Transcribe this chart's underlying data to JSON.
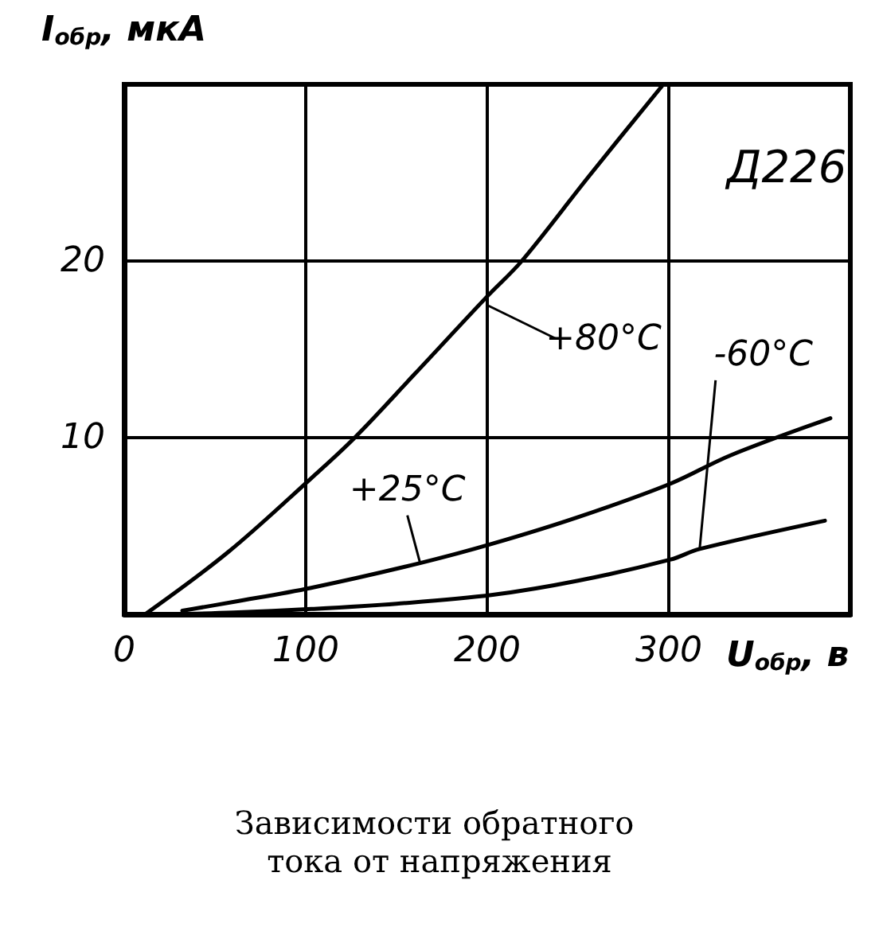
{
  "chart_data": {
    "type": "line",
    "title": "Зависимости обратного тока от напряжения",
    "xlabel": "U$_{обр}$, в",
    "ylabel": "I$_{обр}$, мкА",
    "xlim": [
      0,
      400
    ],
    "ylim": [
      0,
      30
    ],
    "xticks": [
      0,
      100,
      200,
      300,
      {
        "value": 400,
        "label": null
      }
    ],
    "yticks": [
      10,
      20
    ],
    "grid": true,
    "marker": "none",
    "line_style": "solid",
    "series": [
      {
        "color": "#000000",
        "x": [
          11.5,
          57,
          103,
          127,
          160,
          200,
          219,
          256,
          297
        ],
        "values": [
          0,
          3.5,
          7.7,
          10,
          13.6,
          18,
          20,
          24.8,
          30
        ]
      },
      {
        "color": "#000000",
        "x": [
          32,
          60,
          103,
          163,
          203,
          250,
          301,
          334,
          389
        ],
        "values": [
          0.2,
          0.7,
          1.5,
          2.9,
          4.0,
          5.5,
          7.4,
          9,
          11.1
        ]
      },
      {
        "color": "#000000",
        "x": [
          25,
          60,
          103,
          150,
          203,
          250,
          301,
          317,
          386
        ],
        "values": [
          0,
          0.1,
          0.3,
          0.6,
          1.1,
          1.9,
          3.1,
          3.7,
          5.3
        ]
      }
    ],
    "annotations": [
      {
        "text": "+80°C",
        "x": 200,
        "y": 17.5
      },
      {
        "text": "+25°C",
        "x": 163,
        "y": 2.9
      },
      {
        "text": "-60°C",
        "x": 317,
        "y": 3.7
      },
      "Д226"
    ]
  }
}
